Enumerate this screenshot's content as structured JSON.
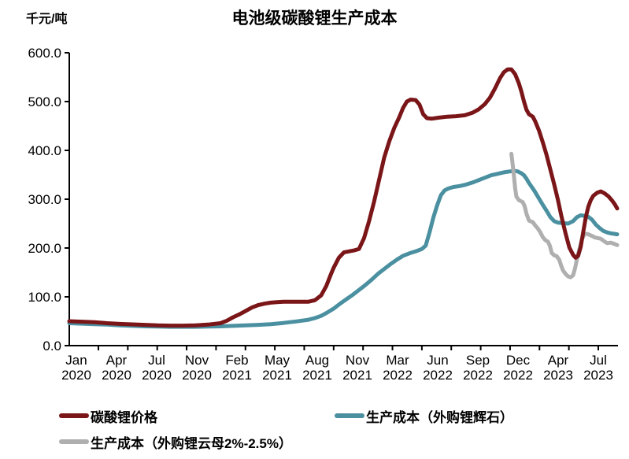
{
  "chart_data": {
    "type": "line",
    "title": "电池级碳酸锂生产成本",
    "unit_label": "千元/吨",
    "xlabel": "",
    "ylabel": "千元/吨",
    "ylim": [
      0,
      600
    ],
    "ytick_values": [
      0,
      100,
      200,
      300,
      400,
      500,
      600
    ],
    "ytick_labels": [
      "0.0",
      "100.0",
      "200.0",
      "300.0",
      "400.0",
      "500.0",
      "600.0"
    ],
    "grid": false,
    "legend_position": "bottom",
    "x_domain_months": [
      0,
      43.5
    ],
    "x_tick_labels": [
      {
        "month": "Jan",
        "year": "2020"
      },
      {
        "month": "Apr",
        "year": "2020"
      },
      {
        "month": "Jul",
        "year": "2020"
      },
      {
        "month": "Nov",
        "year": "2020"
      },
      {
        "month": "Feb",
        "year": "2021"
      },
      {
        "month": "May",
        "year": "2021"
      },
      {
        "month": "Aug",
        "year": "2021"
      },
      {
        "month": "Nov",
        "year": "2021"
      },
      {
        "month": "Mar",
        "year": "2022"
      },
      {
        "month": "Jun",
        "year": "2022"
      },
      {
        "month": "Sep",
        "year": "2022"
      },
      {
        "month": "Dec",
        "year": "2022"
      },
      {
        "month": "Apr",
        "year": "2023"
      },
      {
        "month": "Jul",
        "year": "2023"
      }
    ],
    "draw_order": [
      1,
      2,
      0
    ],
    "series": [
      {
        "name": "碳酸锂价格",
        "color": "#7A1518",
        "points": [
          [
            0,
            50
          ],
          [
            1,
            49
          ],
          [
            2,
            48
          ],
          [
            3,
            46
          ],
          [
            4,
            44.5
          ],
          [
            5,
            43.5
          ],
          [
            6,
            42.5
          ],
          [
            7,
            41.5
          ],
          [
            8,
            41
          ],
          [
            9,
            41
          ],
          [
            10,
            41.5
          ],
          [
            11,
            43
          ],
          [
            12,
            46
          ],
          [
            12.5,
            51
          ],
          [
            13,
            58
          ],
          [
            13.5,
            64
          ],
          [
            14,
            71
          ],
          [
            14.5,
            78
          ],
          [
            15,
            83
          ],
          [
            15.5,
            86
          ],
          [
            16,
            88
          ],
          [
            16.5,
            89
          ],
          [
            17,
            90
          ],
          [
            18,
            90
          ],
          [
            19,
            90
          ],
          [
            19.5,
            93
          ],
          [
            20,
            103
          ],
          [
            20.4,
            122
          ],
          [
            20.8,
            148
          ],
          [
            21,
            160
          ],
          [
            21.4,
            180
          ],
          [
            21.8,
            191
          ],
          [
            22.2,
            193
          ],
          [
            22.6,
            195
          ],
          [
            23,
            198
          ],
          [
            23.4,
            220
          ],
          [
            23.8,
            255
          ],
          [
            24.2,
            295
          ],
          [
            24.6,
            340
          ],
          [
            25,
            385
          ],
          [
            25.4,
            418
          ],
          [
            25.8,
            446
          ],
          [
            26.2,
            468
          ],
          [
            26.5,
            487
          ],
          [
            26.8,
            500
          ],
          [
            27.1,
            504
          ],
          [
            27.5,
            503
          ],
          [
            27.8,
            494
          ],
          [
            28.1,
            474
          ],
          [
            28.4,
            466
          ],
          [
            28.8,
            465
          ],
          [
            29.3,
            467
          ],
          [
            30,
            469
          ],
          [
            30.7,
            470
          ],
          [
            31.4,
            472
          ],
          [
            32,
            477
          ],
          [
            32.5,
            484
          ],
          [
            33,
            495
          ],
          [
            33.4,
            508
          ],
          [
            33.8,
            527
          ],
          [
            34.2,
            548
          ],
          [
            34.5,
            560
          ],
          [
            34.8,
            566
          ],
          [
            35.1,
            566
          ],
          [
            35.4,
            556
          ],
          [
            35.7,
            537
          ],
          [
            35.9,
            520
          ],
          [
            36.1,
            500
          ],
          [
            36.3,
            483
          ],
          [
            36.5,
            474
          ],
          [
            36.8,
            469
          ],
          [
            37,
            459
          ],
          [
            37.3,
            440
          ],
          [
            37.6,
            416
          ],
          [
            37.9,
            390
          ],
          [
            38.2,
            360
          ],
          [
            38.5,
            330
          ],
          [
            38.8,
            298
          ],
          [
            39.1,
            262
          ],
          [
            39.4,
            230
          ],
          [
            39.7,
            201
          ],
          [
            40,
            186
          ],
          [
            40.2,
            180
          ],
          [
            40.4,
            184
          ],
          [
            40.6,
            202
          ],
          [
            40.8,
            232
          ],
          [
            41,
            262
          ],
          [
            41.2,
            284
          ],
          [
            41.4,
            298
          ],
          [
            41.6,
            307
          ],
          [
            41.9,
            313
          ],
          [
            42.2,
            316
          ],
          [
            42.5,
            312
          ],
          [
            42.8,
            306
          ],
          [
            43.1,
            297
          ],
          [
            43.3,
            290
          ],
          [
            43.5,
            281
          ]
        ]
      },
      {
        "name": "生产成本（外购锂辉石）",
        "color": "#4A90A0",
        "points": [
          [
            0,
            46
          ],
          [
            1,
            45
          ],
          [
            2,
            44
          ],
          [
            3,
            43
          ],
          [
            4,
            41.5
          ],
          [
            5,
            40.5
          ],
          [
            6,
            39.5
          ],
          [
            7,
            39
          ],
          [
            8,
            38.5
          ],
          [
            9,
            38.5
          ],
          [
            10,
            38.5
          ],
          [
            11,
            39
          ],
          [
            12,
            39.5
          ],
          [
            13,
            40.5
          ],
          [
            14,
            41.5
          ],
          [
            15,
            42.5
          ],
          [
            16,
            44
          ],
          [
            17,
            46.5
          ],
          [
            18,
            49.5
          ],
          [
            19,
            53
          ],
          [
            19.5,
            56.5
          ],
          [
            20,
            61
          ],
          [
            20.5,
            68
          ],
          [
            21,
            76
          ],
          [
            21.5,
            86
          ],
          [
            22,
            95
          ],
          [
            22.5,
            104
          ],
          [
            23,
            114
          ],
          [
            23.5,
            124
          ],
          [
            24,
            135
          ],
          [
            24.5,
            147
          ],
          [
            25,
            157
          ],
          [
            25.5,
            167
          ],
          [
            26,
            176
          ],
          [
            26.5,
            184
          ],
          [
            27,
            189
          ],
          [
            27.5,
            193
          ],
          [
            28,
            198
          ],
          [
            28.3,
            205
          ],
          [
            28.6,
            232
          ],
          [
            28.9,
            262
          ],
          [
            29.2,
            287
          ],
          [
            29.5,
            308
          ],
          [
            29.8,
            318
          ],
          [
            30.1,
            322
          ],
          [
            30.5,
            325
          ],
          [
            31,
            327
          ],
          [
            31.5,
            330
          ],
          [
            32,
            334
          ],
          [
            32.5,
            339
          ],
          [
            33,
            344
          ],
          [
            33.5,
            349
          ],
          [
            34,
            352
          ],
          [
            34.5,
            355
          ],
          [
            35,
            357
          ],
          [
            35.3,
            358
          ],
          [
            35.6,
            357
          ],
          [
            35.9,
            353
          ],
          [
            36.1,
            349
          ],
          [
            36.3,
            342
          ],
          [
            36.5,
            333
          ],
          [
            36.8,
            322
          ],
          [
            37,
            314
          ],
          [
            37.3,
            301
          ],
          [
            37.6,
            288
          ],
          [
            37.9,
            276
          ],
          [
            38.2,
            263
          ],
          [
            38.5,
            255
          ],
          [
            38.8,
            252
          ],
          [
            39.2,
            251
          ],
          [
            39.6,
            250
          ],
          [
            40,
            255
          ],
          [
            40.3,
            263
          ],
          [
            40.6,
            267
          ],
          [
            40.9,
            266
          ],
          [
            41.2,
            264
          ],
          [
            41.5,
            258
          ],
          [
            41.8,
            248
          ],
          [
            42.1,
            241
          ],
          [
            42.4,
            235
          ],
          [
            42.7,
            232
          ],
          [
            43,
            230
          ],
          [
            43.5,
            228
          ]
        ]
      },
      {
        "name": "生产成本（外购锂云母2%-2.5%）",
        "color": "#AFAFAF",
        "points": [
          [
            35.1,
            393
          ],
          [
            35.2,
            372
          ],
          [
            35.3,
            348
          ],
          [
            35.4,
            322
          ],
          [
            35.5,
            305
          ],
          [
            35.7,
            298
          ],
          [
            36,
            294
          ],
          [
            36.15,
            286
          ],
          [
            36.3,
            270
          ],
          [
            36.5,
            256
          ],
          [
            36.8,
            253
          ],
          [
            37,
            246
          ],
          [
            37.2,
            240
          ],
          [
            37.4,
            232
          ],
          [
            37.6,
            222
          ],
          [
            37.8,
            216
          ],
          [
            38,
            213
          ],
          [
            38.15,
            205
          ],
          [
            38.3,
            190
          ],
          [
            38.5,
            185
          ],
          [
            38.7,
            183
          ],
          [
            38.9,
            176
          ],
          [
            39.05,
            164
          ],
          [
            39.2,
            154
          ],
          [
            39.4,
            147
          ],
          [
            39.6,
            142
          ],
          [
            39.8,
            140
          ],
          [
            40,
            144
          ],
          [
            40.15,
            158
          ],
          [
            40.3,
            176
          ],
          [
            40.5,
            198
          ],
          [
            40.7,
            218
          ],
          [
            40.9,
            228
          ],
          [
            41.1,
            229
          ],
          [
            41.4,
            226
          ],
          [
            41.7,
            222
          ],
          [
            42,
            220
          ],
          [
            42.2,
            219
          ],
          [
            42.4,
            215
          ],
          [
            42.7,
            210
          ],
          [
            43,
            211
          ],
          [
            43.2,
            209
          ],
          [
            43.5,
            206
          ]
        ]
      }
    ]
  },
  "legend": {
    "items": [
      {
        "label": "碳酸锂价格",
        "color": "#7A1518"
      },
      {
        "label": "生产成本（外购锂辉石）",
        "color": "#4A90A0"
      },
      {
        "label": "生产成本（外购锂云母2%-2.5%）",
        "color": "#AFAFAF"
      }
    ]
  }
}
